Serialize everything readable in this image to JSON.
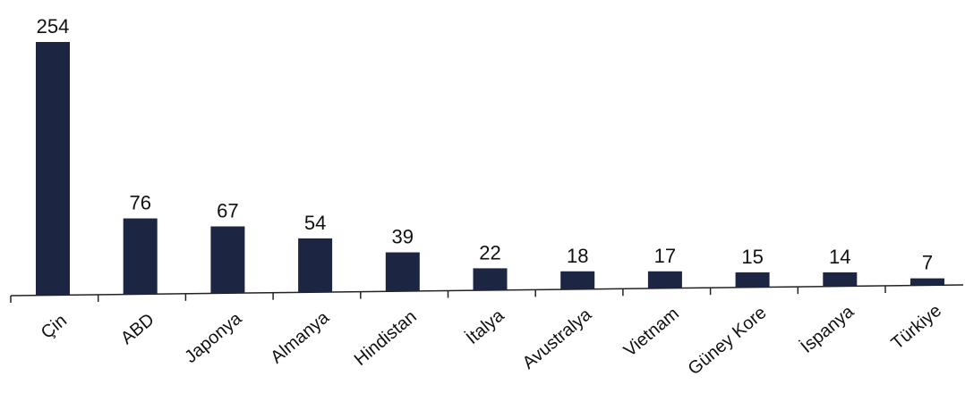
{
  "chart_data": {
    "type": "bar",
    "title": "",
    "xlabel": "",
    "ylabel": "",
    "categories": [
      "Çin",
      "ABD",
      "Japonya",
      "Almanya",
      "Hindistan",
      "İtalya",
      "Avustralya",
      "Vietnam",
      "Güney Kore",
      "İspanya",
      "Türkiye"
    ],
    "values": [
      254,
      76,
      67,
      54,
      39,
      22,
      18,
      17,
      15,
      14,
      7
    ],
    "ylim": [
      0,
      254
    ],
    "grid": false,
    "legend": "none",
    "bar_color": "#1c2541"
  }
}
